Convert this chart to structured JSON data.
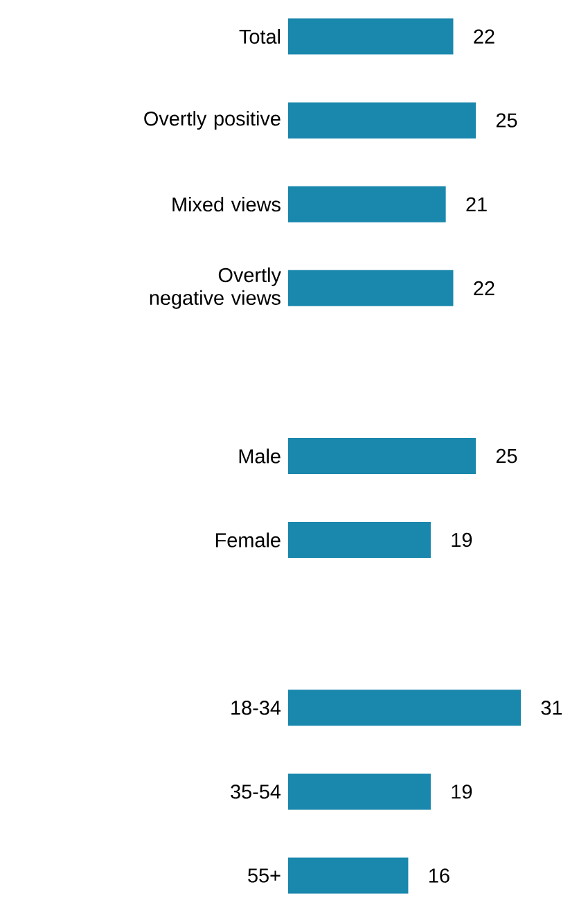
{
  "chart_data": {
    "type": "bar",
    "orientation": "horizontal",
    "data_labels": true,
    "color": "#1a87ad",
    "categories": [
      "Total",
      "Overtly positive",
      "Mixed views",
      "Overtly negative views",
      null,
      "Male",
      "Female",
      null,
      "18-34",
      "35-54",
      "55+"
    ],
    "values": [
      22,
      25,
      21,
      22,
      null,
      25,
      19,
      null,
      31,
      19,
      16
    ]
  }
}
